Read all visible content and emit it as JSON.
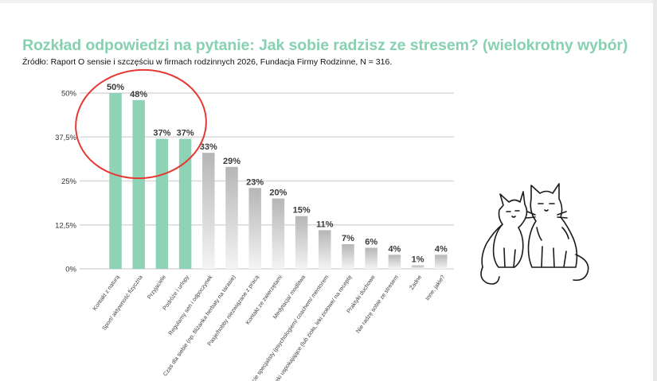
{
  "title": "Rozkład odpowiedzi na pytanie: Jak sobie radzisz ze stresem? (wielokrotny wybór)",
  "source": "Źródło: Raport O sensie i szczęściu w firmach rodzinnych 2026, Fundacja Firmy Rodzinne, N = 316.",
  "colors": {
    "title": "#86d1b2",
    "highlight_bar": "#8fd3b6",
    "other_bar_light": "#f2f2f2",
    "other_bar_dark": "#b9b9b9",
    "circle": "#e53935",
    "grid": "#d9d9d9"
  },
  "icons": {
    "illustration": "two-cats-line-drawing-icon"
  },
  "chart_data": {
    "type": "bar",
    "title": "Rozkład odpowiedzi na pytanie: Jak sobie radzisz ze stresem? (wielokrotny wybór)",
    "xlabel": "",
    "ylabel": "",
    "ylim": [
      0,
      50
    ],
    "yticks": [
      "0%",
      "12,5%",
      "25%",
      "37,5%",
      "50%"
    ],
    "ytick_values": [
      0,
      12.5,
      25,
      37.5,
      50
    ],
    "grid": true,
    "categories": [
      "Kontakt z naturą",
      "Sport/ aktywność fizyczna",
      "Przyjaciele",
      "Podróże i urlopy",
      "Regularny sen i odpoczynek",
      "Czas dla siebie (np. filiżanka herbaty na tarasie)",
      "Pasje/hobby niezwiązane z pracą",
      "Kontakt ze zwierzętami",
      "Medytacja/ modlitwa",
      "Wsparcie specjalisty (psychologiem/ coachem/ mentorem",
      "Leki uspokajające (lub zioła, leki ziołowe/ na receptę",
      "Praktyki duchowe",
      "Nie radzę sobie ze stresem",
      "Żadne",
      "Inne, jakie?"
    ],
    "values": [
      50,
      48,
      37,
      37,
      33,
      29,
      23,
      20,
      15,
      11,
      7,
      6,
      4,
      1,
      4
    ],
    "value_labels": [
      "50%",
      "48%",
      "37%",
      "37%",
      "33%",
      "29%",
      "23%",
      "20%",
      "15%",
      "11%",
      "7%",
      "6%",
      "4%",
      "1%",
      "4%"
    ],
    "highlighted_count": 4
  }
}
